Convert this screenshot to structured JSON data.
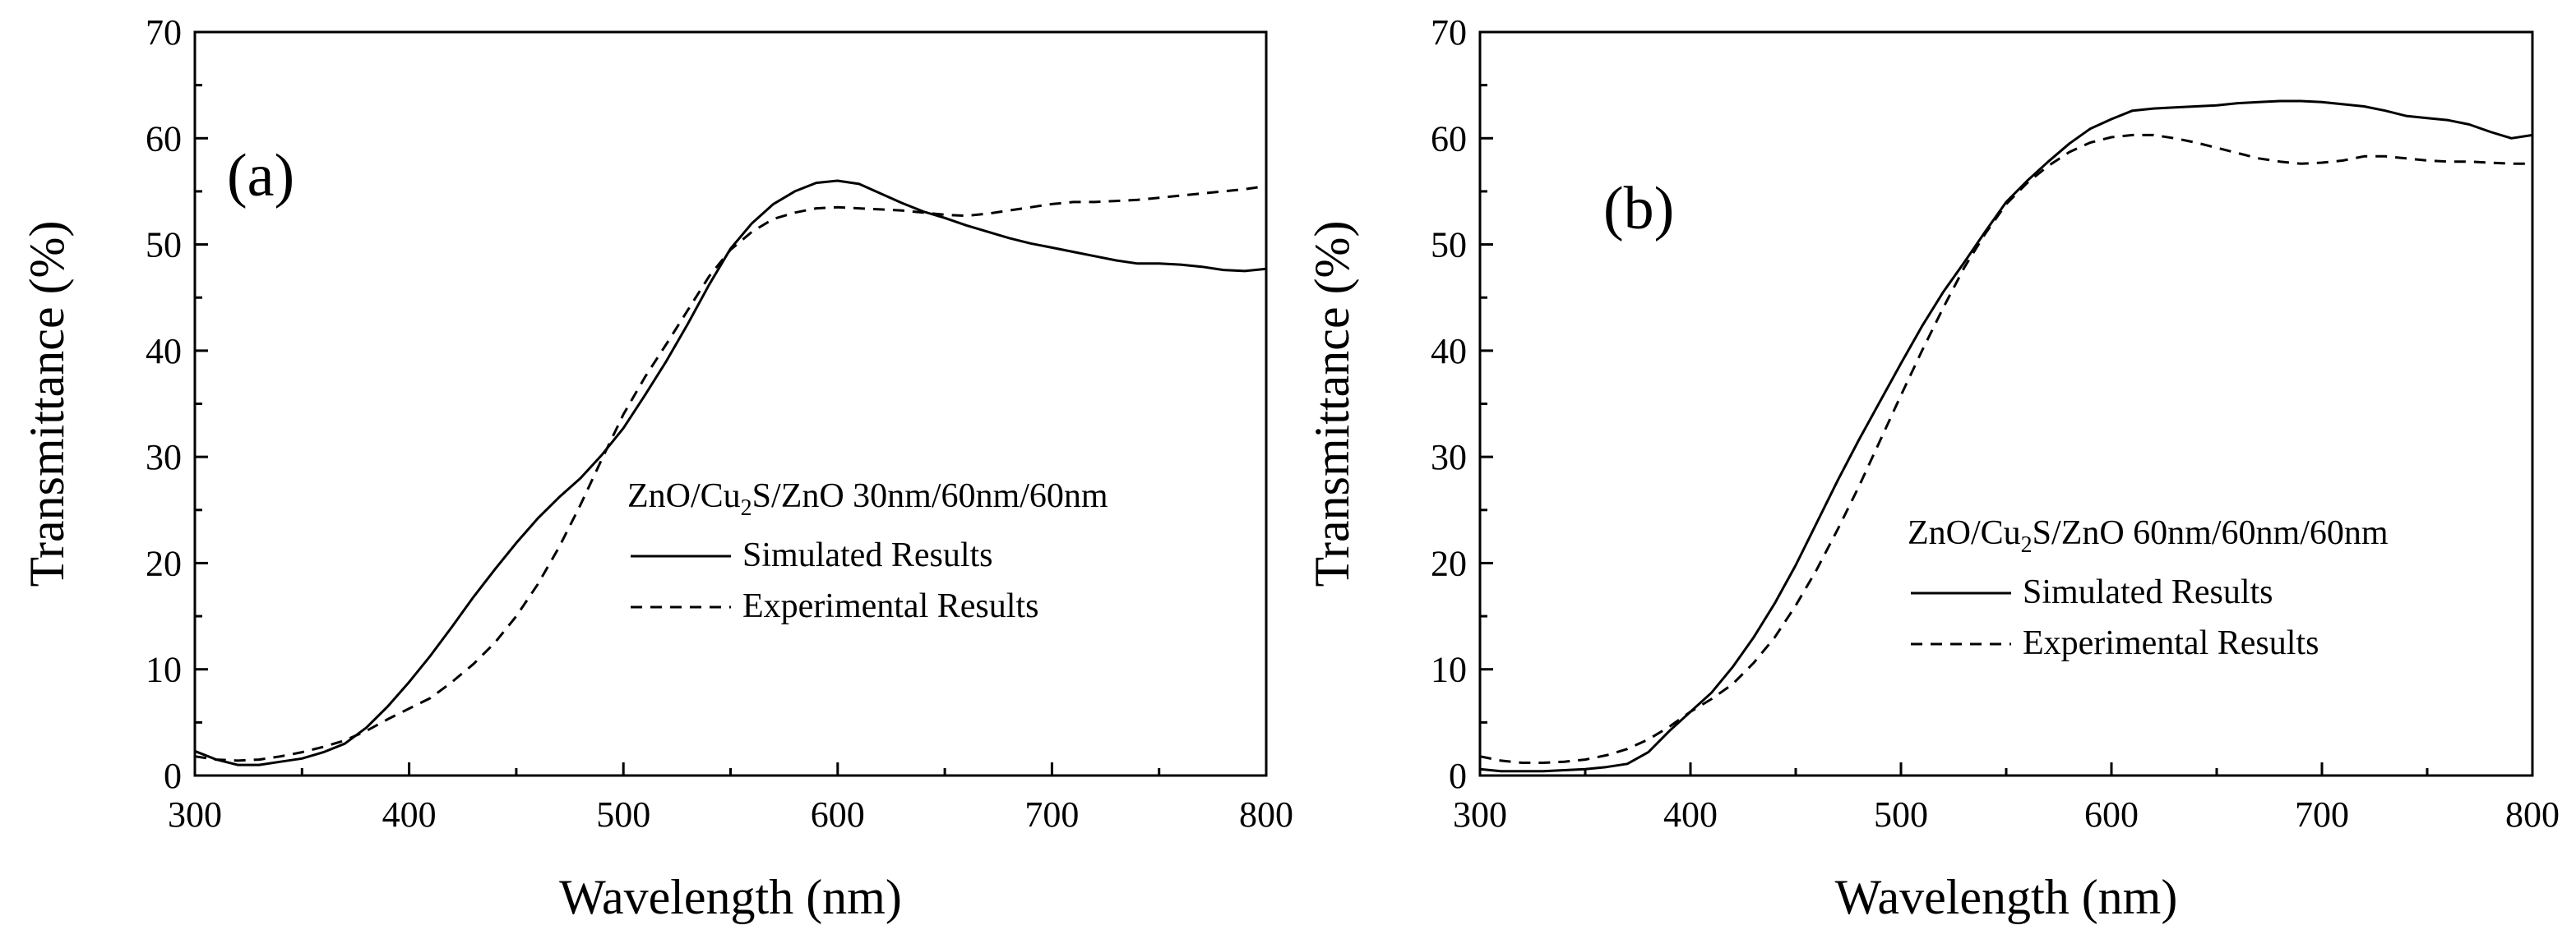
{
  "chart_data": [
    {
      "type": "line",
      "panel_label": "(a)",
      "xlabel": "Wavelength (nm)",
      "ylabel": "Transmittance (%)",
      "xlim": [
        300,
        800
      ],
      "ylim": [
        0,
        70
      ],
      "xticks": [
        300,
        400,
        500,
        600,
        700,
        800
      ],
      "yticks": [
        0,
        10,
        20,
        30,
        40,
        50,
        60,
        70
      ],
      "legend_title": "ZnO/Cu2S/ZnO 30nm/60nm/60nm",
      "legend_title_parts": [
        "ZnO/Cu",
        "2",
        "S/ZnO 30nm/60nm/60nm"
      ],
      "legend_position": "middle-right",
      "series": [
        {
          "name": "Simulated Results",
          "style": "solid",
          "x": [
            300,
            310,
            320,
            330,
            340,
            350,
            360,
            370,
            380,
            390,
            400,
            410,
            420,
            430,
            440,
            450,
            460,
            470,
            480,
            490,
            500,
            510,
            520,
            530,
            540,
            550,
            560,
            570,
            580,
            590,
            600,
            610,
            620,
            630,
            640,
            650,
            660,
            670,
            680,
            690,
            700,
            710,
            720,
            730,
            740,
            750,
            760,
            770,
            780,
            790,
            800
          ],
          "y": [
            2.3,
            1.5,
            1.0,
            1.0,
            1.3,
            1.6,
            2.2,
            3.0,
            4.5,
            6.5,
            8.8,
            11.3,
            14.0,
            16.8,
            19.4,
            21.9,
            24.2,
            26.2,
            28.0,
            30.2,
            32.7,
            35.8,
            39.0,
            42.5,
            46.2,
            49.6,
            52.0,
            53.8,
            55.0,
            55.8,
            56.0,
            55.7,
            54.8,
            53.9,
            53.1,
            52.5,
            51.8,
            51.2,
            50.6,
            50.1,
            49.7,
            49.3,
            48.9,
            48.5,
            48.2,
            48.2,
            48.1,
            47.9,
            47.6,
            47.5,
            47.7
          ]
        },
        {
          "name": "Experimental Results",
          "style": "dashed",
          "x": [
            300,
            310,
            320,
            330,
            340,
            350,
            360,
            370,
            380,
            390,
            400,
            410,
            420,
            430,
            440,
            450,
            460,
            470,
            480,
            490,
            500,
            510,
            520,
            530,
            540,
            550,
            560,
            570,
            580,
            590,
            600,
            610,
            620,
            630,
            640,
            650,
            660,
            670,
            680,
            690,
            700,
            710,
            720,
            730,
            740,
            750,
            760,
            770,
            780,
            790,
            800
          ],
          "y": [
            1.8,
            1.5,
            1.4,
            1.5,
            1.8,
            2.2,
            2.7,
            3.3,
            4.2,
            5.3,
            6.3,
            7.3,
            8.8,
            10.5,
            12.5,
            15.0,
            18.0,
            21.5,
            25.5,
            29.8,
            34.0,
            37.5,
            40.6,
            43.8,
            47.0,
            49.5,
            51.2,
            52.4,
            53.0,
            53.4,
            53.5,
            53.4,
            53.3,
            53.2,
            53.0,
            52.8,
            52.7,
            52.9,
            53.2,
            53.5,
            53.8,
            54.0,
            54.0,
            54.1,
            54.2,
            54.4,
            54.6,
            54.8,
            55.0,
            55.2,
            55.5
          ]
        }
      ]
    },
    {
      "type": "line",
      "panel_label": "(b)",
      "xlabel": "Wavelength (nm)",
      "ylabel": "Transmittance (%)",
      "xlim": [
        300,
        800
      ],
      "ylim": [
        0,
        70
      ],
      "xticks": [
        300,
        400,
        500,
        600,
        700,
        800
      ],
      "yticks": [
        0,
        10,
        20,
        30,
        40,
        50,
        60,
        70
      ],
      "legend_title": "ZnO/Cu2S/ZnO 60nm/60nm/60nm",
      "legend_title_parts": [
        "ZnO/Cu",
        "2",
        "S/ZnO 60nm/60nm/60nm"
      ],
      "legend_position": "lower-right",
      "series": [
        {
          "name": "Simulated Results",
          "style": "solid",
          "x": [
            300,
            310,
            320,
            330,
            340,
            350,
            360,
            370,
            380,
            390,
            400,
            410,
            420,
            430,
            440,
            450,
            460,
            470,
            480,
            490,
            500,
            510,
            520,
            530,
            540,
            550,
            560,
            570,
            580,
            590,
            600,
            610,
            620,
            630,
            640,
            650,
            660,
            670,
            680,
            690,
            700,
            710,
            720,
            730,
            740,
            750,
            760,
            770,
            780,
            790,
            800
          ],
          "y": [
            0.6,
            0.4,
            0.4,
            0.4,
            0.5,
            0.6,
            0.8,
            1.1,
            2.2,
            4.2,
            6.0,
            7.8,
            10.2,
            13.0,
            16.2,
            19.8,
            23.8,
            27.8,
            31.6,
            35.2,
            38.8,
            42.3,
            45.5,
            48.3,
            51.2,
            54.0,
            56.0,
            57.8,
            59.5,
            60.9,
            61.8,
            62.6,
            62.8,
            62.9,
            63.0,
            63.1,
            63.3,
            63.4,
            63.5,
            63.5,
            63.4,
            63.2,
            63.0,
            62.6,
            62.1,
            61.9,
            61.7,
            61.3,
            60.6,
            60.0,
            60.3
          ]
        },
        {
          "name": "Experimental Results",
          "style": "dashed",
          "x": [
            300,
            310,
            320,
            330,
            340,
            350,
            360,
            370,
            380,
            390,
            400,
            410,
            420,
            430,
            440,
            450,
            460,
            470,
            480,
            490,
            500,
            510,
            520,
            530,
            540,
            550,
            560,
            570,
            580,
            590,
            600,
            610,
            620,
            630,
            640,
            650,
            660,
            670,
            680,
            690,
            700,
            710,
            720,
            730,
            740,
            750,
            760,
            770,
            780,
            790,
            800
          ],
          "y": [
            1.8,
            1.4,
            1.2,
            1.2,
            1.3,
            1.5,
            1.9,
            2.5,
            3.4,
            4.6,
            6.0,
            7.2,
            8.6,
            10.6,
            13.0,
            16.0,
            19.4,
            23.2,
            27.2,
            31.5,
            35.8,
            40.0,
            44.0,
            47.8,
            51.0,
            53.8,
            55.8,
            57.4,
            58.7,
            59.6,
            60.1,
            60.3,
            60.3,
            60.0,
            59.6,
            59.1,
            58.6,
            58.1,
            57.8,
            57.6,
            57.7,
            57.9,
            58.3,
            58.3,
            58.1,
            57.9,
            57.8,
            57.8,
            57.7,
            57.6,
            57.6
          ]
        }
      ]
    }
  ]
}
